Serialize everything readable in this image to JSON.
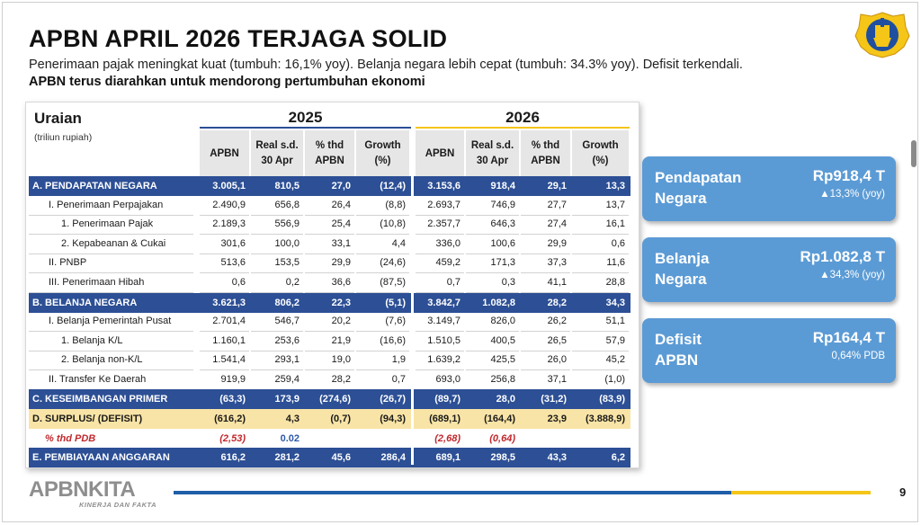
{
  "header": {
    "title": "APBN APRIL 2026 TERJAGA SOLID",
    "subtitle": "Penerimaan pajak meningkat kuat (tumbuh: 16,1% yoy). Belanja negara lebih cepat (tumbuh: 34.3% yoy). Defisit terkendali.",
    "subtitle2": "APBN terus diarahkan untuk mendorong pertumbuhan ekonomi"
  },
  "table": {
    "uraian_label": "Uraian",
    "unit": "(triliun rupiah)",
    "year_2025": "2025",
    "year_2026": "2026",
    "col_apbn": "APBN",
    "col_real_1": "Real s.d.",
    "col_real_2": "30 Apr",
    "col_pct_1": "% thd",
    "col_pct_2": "APBN",
    "col_growth_1": "Growth",
    "col_growth_2": "(%)",
    "rows": [
      {
        "label": "A. PENDAPATAN NEGARA",
        "v": [
          "3.005,1",
          "810,5",
          "27,0",
          "(12,4)",
          "3.153,6",
          "918,4",
          "29,1",
          "13,3"
        ]
      },
      {
        "label": "I. Penerimaan Perpajakan",
        "v": [
          "2.490,9",
          "656,8",
          "26,4",
          "(8,8)",
          "2.693,7",
          "746,9",
          "27,7",
          "13,7"
        ]
      },
      {
        "label": "1. Penerimaan Pajak",
        "v": [
          "2.189,3",
          "556,9",
          "25,4",
          "(10,8)",
          "2.357,7",
          "646,3",
          "27,4",
          "16,1"
        ]
      },
      {
        "label": "2. Kepabeanan & Cukai",
        "v": [
          "301,6",
          "100,0",
          "33,1",
          "4,4",
          "336,0",
          "100,6",
          "29,9",
          "0,6"
        ]
      },
      {
        "label": "II. PNBP",
        "v": [
          "513,6",
          "153,5",
          "29,9",
          "(24,6)",
          "459,2",
          "171,3",
          "37,3",
          "11,6"
        ]
      },
      {
        "label": "III. Penerimaan Hibah",
        "v": [
          "0,6",
          "0,2",
          "36,6",
          "(87,5)",
          "0,7",
          "0,3",
          "41,1",
          "28,8"
        ]
      },
      {
        "label": "B. BELANJA NEGARA",
        "v": [
          "3.621,3",
          "806,2",
          "22,3",
          "(5,1)",
          "3.842,7",
          "1.082,8",
          "28,2",
          "34,3"
        ]
      },
      {
        "label": "I. Belanja Pemerintah Pusat",
        "v": [
          "2.701,4",
          "546,7",
          "20,2",
          "(7,6)",
          "3.149,7",
          "826,0",
          "26,2",
          "51,1"
        ]
      },
      {
        "label": "1. Belanja K/L",
        "v": [
          "1.160,1",
          "253,6",
          "21,9",
          "(16,6)",
          "1.510,5",
          "400,5",
          "26,5",
          "57,9"
        ]
      },
      {
        "label": "2. Belanja non-K/L",
        "v": [
          "1.541,4",
          "293,1",
          "19,0",
          "1,9",
          "1.639,2",
          "425,5",
          "26,0",
          "45,2"
        ]
      },
      {
        "label": "II. Transfer Ke Daerah",
        "v": [
          "919,9",
          "259,4",
          "28,2",
          "0,7",
          "693,0",
          "256,8",
          "37,1",
          "(1,0)"
        ]
      },
      {
        "label": "C. KESEIMBANGAN PRIMER",
        "v": [
          "(63,3)",
          "173,9",
          "(274,6)",
          "(26,7)",
          "(89,7)",
          "28,0",
          "(31,2)",
          "(83,9)"
        ]
      },
      {
        "label": "D. SURPLUS/ (DEFISIT)",
        "v": [
          "(616,2)",
          "4,3",
          "(0,7)",
          "(94,3)",
          "(689,1)",
          "(164,4)",
          "23,9",
          "(3.888,9)"
        ]
      },
      {
        "label": "% thd PDB",
        "v": [
          "(2,53)",
          "0.02",
          "",
          "",
          "(2,68)",
          "(0,64)",
          "",
          ""
        ]
      },
      {
        "label": "E. PEMBIAYAAN ANGGARAN",
        "v": [
          "616,2",
          "281,2",
          "45,6",
          "286,4",
          "689,1",
          "298,5",
          "43,3",
          "6,2"
        ]
      }
    ]
  },
  "summary": [
    {
      "label_1": "Pendapatan",
      "label_2": "Negara",
      "value": "Rp918,4 T",
      "sub": "▲13,3% (yoy)"
    },
    {
      "label_1": "Belanja",
      "label_2": "Negara",
      "value": "Rp1.082,8 T",
      "sub": "▲34,3% (yoy)"
    },
    {
      "label_1": "Defisit",
      "label_2": "APBN",
      "value": "Rp164,4 T",
      "sub": "0,64% PDB"
    }
  ],
  "footer": {
    "brand": "APBNKITA",
    "brand_sub": "KINERJA DAN FAKTA",
    "page_number": "9"
  },
  "colors": {
    "row_highlight": "#2c4f95",
    "row_yellow": "#f8e4a6",
    "summary_card": "#5b9bd5",
    "accent_yellow": "#f5c518",
    "accent_blue": "#1f5ea8"
  }
}
